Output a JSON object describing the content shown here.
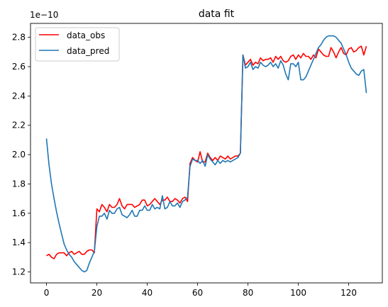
{
  "chart_data": {
    "type": "line",
    "title": "data fit",
    "xlabel": "",
    "ylabel": "",
    "y_scale_label": "1e−10",
    "xlim": [
      -6.35,
      133.35
    ],
    "ylim": [
      1.125,
      2.895
    ],
    "xticks": [
      0,
      20,
      40,
      60,
      80,
      100,
      120
    ],
    "yticks": [
      1.2,
      1.4,
      1.6,
      1.8,
      2.0,
      2.2,
      2.4,
      2.6,
      2.8
    ],
    "grid": false,
    "legend_position": "upper-left",
    "series": [
      {
        "name": "data_obs",
        "color": "#ff0000",
        "x": [
          0,
          1,
          2,
          3,
          4,
          5,
          6,
          7,
          8,
          9,
          10,
          11,
          12,
          13,
          14,
          15,
          16,
          17,
          18,
          19,
          20,
          21,
          22,
          23,
          24,
          25,
          26,
          27,
          28,
          29,
          30,
          31,
          32,
          33,
          34,
          35,
          36,
          37,
          38,
          39,
          40,
          41,
          42,
          43,
          44,
          45,
          46,
          47,
          48,
          49,
          50,
          51,
          52,
          53,
          54,
          55,
          56,
          57,
          58,
          59,
          60,
          61,
          62,
          63,
          64,
          65,
          66,
          67,
          68,
          69,
          70,
          71,
          72,
          73,
          74,
          75,
          76,
          77,
          78,
          79,
          80,
          81,
          82,
          83,
          84,
          85,
          86,
          87,
          88,
          89,
          90,
          91,
          92,
          93,
          94,
          95,
          96,
          97,
          98,
          99,
          100,
          101,
          102,
          103,
          104,
          105,
          106,
          107,
          108,
          109,
          110,
          111,
          112,
          113,
          114,
          115,
          116,
          117,
          118,
          119,
          120,
          121,
          122,
          123,
          124,
          125,
          126,
          127
        ],
        "values": [
          1.31,
          1.32,
          1.3,
          1.29,
          1.32,
          1.33,
          1.33,
          1.33,
          1.31,
          1.33,
          1.34,
          1.32,
          1.33,
          1.34,
          1.32,
          1.32,
          1.34,
          1.35,
          1.35,
          1.33,
          1.63,
          1.61,
          1.66,
          1.64,
          1.61,
          1.66,
          1.64,
          1.64,
          1.66,
          1.7,
          1.65,
          1.63,
          1.66,
          1.66,
          1.66,
          1.64,
          1.65,
          1.66,
          1.69,
          1.69,
          1.65,
          1.66,
          1.68,
          1.7,
          1.68,
          1.66,
          1.69,
          1.69,
          1.71,
          1.68,
          1.68,
          1.7,
          1.69,
          1.67,
          1.7,
          1.71,
          1.68,
          1.94,
          1.98,
          1.96,
          1.95,
          2.02,
          1.95,
          1.95,
          2.01,
          1.98,
          1.96,
          1.98,
          1.96,
          1.99,
          1.98,
          1.97,
          1.99,
          1.97,
          1.98,
          1.99,
          1.99,
          2.01,
          2.68,
          2.61,
          2.63,
          2.65,
          2.61,
          2.63,
          2.62,
          2.66,
          2.64,
          2.65,
          2.65,
          2.66,
          2.63,
          2.67,
          2.65,
          2.67,
          2.64,
          2.63,
          2.64,
          2.67,
          2.68,
          2.65,
          2.68,
          2.66,
          2.69,
          2.67,
          2.67,
          2.65,
          2.68,
          2.66,
          2.72,
          2.7,
          2.68,
          2.67,
          2.67,
          2.73,
          2.7,
          2.66,
          2.7,
          2.73,
          2.69,
          2.68,
          2.72,
          2.73,
          2.7,
          2.71,
          2.73,
          2.74,
          2.68,
          2.74
        ]
      },
      {
        "name": "data_pred",
        "color": "#1f77b4",
        "x": [
          0,
          1,
          2,
          3,
          4,
          5,
          6,
          7,
          8,
          9,
          10,
          11,
          12,
          13,
          14,
          15,
          16,
          17,
          18,
          19,
          20,
          21,
          22,
          23,
          24,
          25,
          26,
          27,
          28,
          29,
          30,
          31,
          32,
          33,
          34,
          35,
          36,
          37,
          38,
          39,
          40,
          41,
          42,
          43,
          44,
          45,
          46,
          47,
          48,
          49,
          50,
          51,
          52,
          53,
          54,
          55,
          56,
          57,
          58,
          59,
          60,
          61,
          62,
          63,
          64,
          65,
          66,
          67,
          68,
          69,
          70,
          71,
          72,
          73,
          74,
          75,
          76,
          77,
          78,
          79,
          80,
          81,
          82,
          83,
          84,
          85,
          86,
          87,
          88,
          89,
          90,
          91,
          92,
          93,
          94,
          95,
          96,
          97,
          98,
          99,
          100,
          101,
          102,
          103,
          104,
          105,
          106,
          107,
          108,
          109,
          110,
          111,
          112,
          113,
          114,
          115,
          116,
          117,
          118,
          119,
          120,
          121,
          122,
          123,
          124,
          125,
          126,
          127
        ],
        "values": [
          2.11,
          1.93,
          1.8,
          1.7,
          1.61,
          1.53,
          1.46,
          1.39,
          1.35,
          1.32,
          1.3,
          1.27,
          1.25,
          1.23,
          1.21,
          1.2,
          1.21,
          1.26,
          1.3,
          1.34,
          1.51,
          1.58,
          1.58,
          1.6,
          1.56,
          1.62,
          1.6,
          1.6,
          1.63,
          1.64,
          1.59,
          1.58,
          1.57,
          1.59,
          1.62,
          1.58,
          1.58,
          1.62,
          1.62,
          1.65,
          1.62,
          1.62,
          1.66,
          1.63,
          1.64,
          1.63,
          1.72,
          1.63,
          1.64,
          1.68,
          1.65,
          1.65,
          1.67,
          1.64,
          1.68,
          1.69,
          1.71,
          1.92,
          1.97,
          1.96,
          1.96,
          1.94,
          1.96,
          1.92,
          2.0,
          1.97,
          1.95,
          1.93,
          1.96,
          1.94,
          1.96,
          1.95,
          1.96,
          1.95,
          1.96,
          1.97,
          1.98,
          2.01,
          2.68,
          2.59,
          2.6,
          2.63,
          2.58,
          2.6,
          2.59,
          2.63,
          2.61,
          2.6,
          2.61,
          2.63,
          2.6,
          2.62,
          2.59,
          2.64,
          2.61,
          2.55,
          2.51,
          2.62,
          2.62,
          2.6,
          2.63,
          2.51,
          2.51,
          2.53,
          2.57,
          2.61,
          2.65,
          2.69,
          2.73,
          2.75,
          2.78,
          2.8,
          2.81,
          2.81,
          2.81,
          2.8,
          2.78,
          2.76,
          2.72,
          2.68,
          2.63,
          2.59,
          2.57,
          2.55,
          2.54,
          2.57,
          2.58,
          2.42
        ]
      }
    ]
  }
}
